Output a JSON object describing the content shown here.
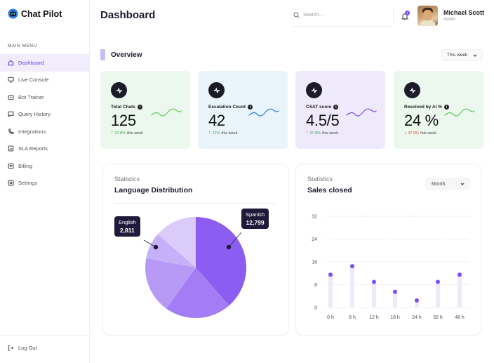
{
  "brand": {
    "name": "Chat Pilot"
  },
  "header": {
    "title": "Dashboard",
    "search_placeholder": "Search...",
    "notification_count": "1"
  },
  "user": {
    "name": "Michael Scott",
    "role": "Admin"
  },
  "sidebar": {
    "section_title": "MAIN MENU",
    "items": [
      {
        "label": "Dashboard",
        "icon": "home-icon",
        "active": true
      },
      {
        "label": "Live Console",
        "icon": "monitor-icon"
      },
      {
        "label": "Bot Trainer",
        "icon": "bot-icon"
      },
      {
        "label": "Query History",
        "icon": "chat-icon"
      },
      {
        "label": "Integrations",
        "icon": "phone-icon"
      },
      {
        "label": "SLA Reports",
        "icon": "report-icon"
      },
      {
        "label": "Billing",
        "icon": "billing-icon"
      },
      {
        "label": "Settings",
        "icon": "settings-icon"
      }
    ],
    "logout_label": "Log Out"
  },
  "overview": {
    "title": "Overview",
    "period": "This week",
    "cards": [
      {
        "label": "Total Chats",
        "value": "125",
        "change": "37.8%",
        "suffix": "this week",
        "direction": "up",
        "bg": "#ecf7ee",
        "spark": "#6fcf6f"
      },
      {
        "label": "Escalation Count",
        "value": "42",
        "change": "12%",
        "suffix": "this week",
        "direction": "up",
        "bg": "#eaf4fb",
        "spark": "#3b8fdc"
      },
      {
        "label": "CSAT score",
        "value": "4.5/5",
        "change": "37.8%",
        "suffix": "this week",
        "direction": "up",
        "bg": "#efeafb",
        "spark": "#8e5ee6"
      },
      {
        "label": "Resolved by AI %",
        "value": "24 %",
        "change": "37.8%",
        "suffix": "this week",
        "direction": "down",
        "bg": "#ecf7ee",
        "spark": "#6fcf6f"
      }
    ]
  },
  "language_panel": {
    "supertitle": "Statistics",
    "title": "Language Distribution",
    "tooltips": [
      {
        "label": "English",
        "value": "2,811"
      },
      {
        "label": "Spanish",
        "value": "12,799"
      }
    ]
  },
  "sales_panel": {
    "supertitle": "Statistics",
    "title": "Sales closed",
    "period": "Month"
  },
  "chart_data": [
    {
      "type": "pie",
      "title": "Language Distribution",
      "slices": [
        {
          "label": "Spanish",
          "value": 12799,
          "color": "#8d5cf0"
        },
        {
          "label": "",
          "value": 7100,
          "color": "#a47cf3"
        },
        {
          "label": "",
          "value": 6000,
          "color": "#b79af6"
        },
        {
          "label": "English",
          "value": 2811,
          "color": "#c6b1f8"
        },
        {
          "label": "",
          "value": 4500,
          "color": "#dacbfb"
        }
      ]
    },
    {
      "type": "scatter",
      "title": "Sales closed",
      "categories": [
        "0 h",
        "8 h",
        "12 h",
        "18 h",
        "24 h",
        "32 h",
        "48 h"
      ],
      "values": [
        11.5,
        14.5,
        9,
        5.5,
        2.5,
        9,
        11.5
      ],
      "y_ticks": [
        0,
        8,
        16,
        24,
        32
      ],
      "ylim": [
        0,
        32
      ],
      "color": "#7c4dff"
    }
  ]
}
